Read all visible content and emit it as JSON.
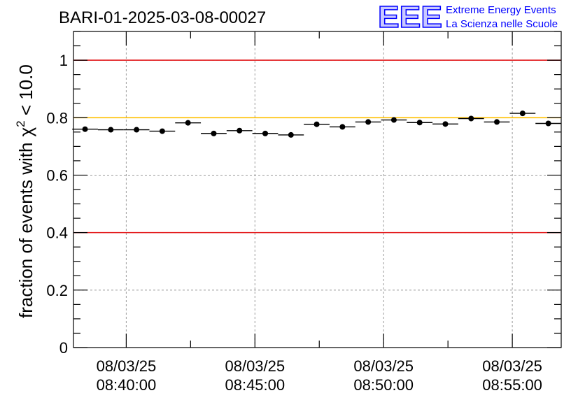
{
  "chart_data": {
    "type": "scatter",
    "title": "BARI-01-2025-03-08-00027",
    "xlabel": "",
    "ylabel": "fraction of events with",
    "ylabel_symbol": "χ",
    "ylabel_power": "2",
    "ylabel_tail": " < 10.0",
    "ylim": [
      0,
      1.1
    ],
    "yticks": [
      0,
      0.2,
      0.4,
      0.6,
      0.8,
      1
    ],
    "ytick_labels": [
      "0",
      "0.2",
      "0.4",
      "0.6",
      "0.8",
      "1"
    ],
    "xlim_min": [
      37.95,
      56.9
    ],
    "xticks_min": [
      40,
      45,
      50,
      55
    ],
    "xtick_labels": [
      [
        "08/03/25",
        "08:40:00"
      ],
      [
        "08/03/25",
        "08:45:00"
      ],
      [
        "08/03/25",
        "08:50:00"
      ],
      [
        "08/03/25",
        "08:55:00"
      ]
    ],
    "bin_width_min": 1,
    "x": [
      38.4,
      39.4,
      40.4,
      41.4,
      42.4,
      43.4,
      44.4,
      45.4,
      46.4,
      47.4,
      48.4,
      49.4,
      50.4,
      51.4,
      52.4,
      53.4,
      54.4,
      55.4,
      56.4
    ],
    "values": [
      0.76,
      0.758,
      0.758,
      0.753,
      0.782,
      0.745,
      0.755,
      0.745,
      0.74,
      0.777,
      0.768,
      0.785,
      0.792,
      0.783,
      0.778,
      0.797,
      0.785,
      0.815,
      0.78
    ],
    "reference_lines": [
      {
        "value": 1.0,
        "color": "#e31a1c"
      },
      {
        "value": 0.8,
        "color": "#ffc000"
      },
      {
        "value": 0.4,
        "color": "#e31a1c"
      }
    ],
    "grid": true,
    "marker_color": "#000000"
  },
  "logo": {
    "mark": "EEE",
    "line1": "Extreme Energy Events",
    "line2": "La Scienza nelle Scuole",
    "color": "#0000ff"
  }
}
